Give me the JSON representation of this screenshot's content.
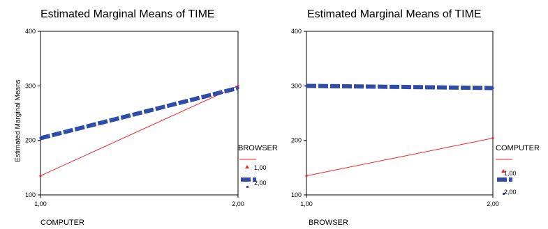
{
  "chart_data": [
    {
      "type": "line",
      "title": "Estimated Marginal Means of TIME",
      "xlabel": "COMPUTER",
      "ylabel": "Estimated Marginal Means",
      "categories": [
        "1,00",
        "2,00"
      ],
      "ylim": [
        100,
        400
      ],
      "yticks": [
        "100",
        "200",
        "300",
        "400"
      ],
      "legend_title": "BROWSER",
      "legend_position": "right",
      "grid": false,
      "series": [
        {
          "name": "1,00",
          "values": [
            135,
            300
          ],
          "color": "#e8262b",
          "style": "solid-thin"
        },
        {
          "name": "2,00",
          "values": [
            204,
            296
          ],
          "color": "#2f4da8",
          "style": "dashed-thick"
        }
      ]
    },
    {
      "type": "line",
      "title": "Estimated Marginal Means of TIME",
      "xlabel": "BROWSER",
      "ylabel": "",
      "categories": [
        "1,00",
        "2,00"
      ],
      "ylim": [
        100,
        400
      ],
      "yticks": [
        "100",
        "200",
        "300",
        "400"
      ],
      "legend_title": "COMPUTER",
      "legend_position": "right",
      "grid": false,
      "series": [
        {
          "name": "1,00",
          "values": [
            135,
            204
          ],
          "color": "#e8262b",
          "style": "solid-thin"
        },
        {
          "name": "2,00",
          "values": [
            300,
            296
          ],
          "color": "#2f4da8",
          "style": "dashed-thick"
        }
      ]
    }
  ]
}
